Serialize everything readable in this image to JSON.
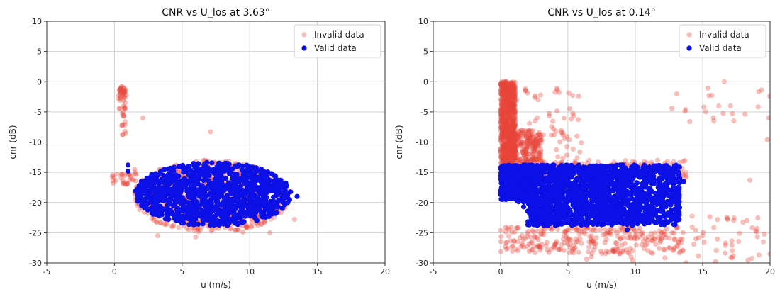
{
  "chart_data": [
    {
      "type": "scatter",
      "title": "CNR vs U_los at 3.63°",
      "xlabel": "u (m/s)",
      "ylabel": "cnr (dB)",
      "xlim": [
        -5,
        20
      ],
      "ylim": [
        -30,
        10
      ],
      "xticks": [
        -5,
        0,
        5,
        10,
        15,
        20
      ],
      "yticks": [
        10,
        5,
        0,
        -5,
        -10,
        -15,
        -20,
        -25,
        -30
      ],
      "grid": true,
      "legend_position": "top-right",
      "series": [
        {
          "name": "Invalid data",
          "color": "#e8463a",
          "alpha": 0.35,
          "clusters": [
            {
              "shape": "ellipse",
              "cx": 7.2,
              "cy": -19.0,
              "rx": 5.8,
              "ry": 6.0,
              "n": 650
            },
            {
              "shape": "ellipse",
              "cx": 0.6,
              "cy": -3.0,
              "rx": 0.3,
              "ry": 2.8,
              "n": 45
            },
            {
              "shape": "ellipse",
              "cx": 0.7,
              "cy": -7.5,
              "rx": 0.25,
              "ry": 1.8,
              "n": 10
            },
            {
              "shape": "ellipse",
              "cx": 0.8,
              "cy": -15.8,
              "rx": 1.0,
              "ry": 1.3,
              "n": 30
            }
          ],
          "points": [
            [
              -0.1,
              -16.8
            ],
            [
              2.1,
              -6.0
            ],
            [
              7.1,
              -8.3
            ],
            [
              0.2,
              -15.3
            ],
            [
              1.5,
              -14.5
            ],
            [
              11.5,
              -25.0
            ],
            [
              3.2,
              -25.5
            ],
            [
              6.0,
              -25.7
            ],
            [
              9.5,
              -24.9
            ],
            [
              13.3,
              -22.8
            ]
          ]
        },
        {
          "name": "Valid data",
          "color": "#0a10e6",
          "alpha": 1.0,
          "clusters": [
            {
              "shape": "ellipse",
              "cx": 7.3,
              "cy": -18.6,
              "rx": 5.8,
              "ry": 5.3,
              "n": 1100
            }
          ],
          "points": [
            [
              1.0,
              -13.8
            ],
            [
              1.0,
              -14.8
            ],
            [
              1.9,
              -19.0
            ],
            [
              13.5,
              -19.0
            ]
          ]
        }
      ]
    },
    {
      "type": "scatter",
      "title": "CNR vs U_los at 0.14°",
      "xlabel": "u (m/s)",
      "ylabel": "cnr (dB)",
      "xlim": [
        -5,
        20
      ],
      "ylim": [
        -30,
        10
      ],
      "xticks": [
        -5,
        0,
        5,
        10,
        15,
        20
      ],
      "yticks": [
        10,
        5,
        0,
        -5,
        -10,
        -15,
        -20,
        -25,
        -30
      ],
      "grid": true,
      "legend_position": "top-right",
      "series": [
        {
          "name": "Invalid data",
          "color": "#e8463a",
          "alpha": 0.35,
          "clusters": [
            {
              "shape": "rect",
              "x0": 0.0,
              "x1": 1.1,
              "y0": -13.5,
              "y1": 0.0,
              "n": 900
            },
            {
              "shape": "rect",
              "x0": 0.8,
              "x1": 3.0,
              "y0": -13.5,
              "y1": -8.0,
              "n": 200
            },
            {
              "shape": "rect",
              "x0": 0.0,
              "x1": 13.5,
              "y0": -28.5,
              "y1": -24.0,
              "n": 260
            },
            {
              "shape": "rect",
              "x0": 0.0,
              "x1": 13.8,
              "y0": -16.0,
              "y1": -13.0,
              "n": 200
            },
            {
              "shape": "rect",
              "x0": 1.0,
              "x1": 6.0,
              "y0": -13.0,
              "y1": -1.0,
              "n": 70
            },
            {
              "shape": "rect",
              "x0": 5.0,
              "x1": 20.0,
              "y0": -30.0,
              "y1": -24.0,
              "n": 60
            },
            {
              "shape": "rect",
              "x0": 12.0,
              "x1": 20.0,
              "y0": -8.0,
              "y1": 0.0,
              "n": 22
            },
            {
              "shape": "rect",
              "x0": 13.0,
              "x1": 20.0,
              "y0": -30.0,
              "y1": -22.0,
              "n": 25
            }
          ],
          "points": [
            [
              16.6,
              0.0
            ],
            [
              18.5,
              -16.3
            ],
            [
              19.8,
              -9.6
            ],
            [
              19.9,
              -6.0
            ],
            [
              20.0,
              -28.5
            ],
            [
              15.0,
              -25.5
            ],
            [
              14.5,
              -26.0
            ],
            [
              19.5,
              -26.5
            ]
          ]
        },
        {
          "name": "Valid data",
          "color": "#0a10e6",
          "alpha": 1.0,
          "clusters": [
            {
              "shape": "rect",
              "x0": 0.0,
              "x1": 2.5,
              "y0": -19.5,
              "y1": -13.8,
              "n": 500
            },
            {
              "shape": "rect",
              "x0": 2.0,
              "x1": 13.3,
              "y0": -23.8,
              "y1": -13.8,
              "n": 1400
            },
            {
              "shape": "ellipse",
              "cx": 7.0,
              "cy": -18.8,
              "rx": 6.0,
              "ry": 4.9,
              "n": 400
            }
          ],
          "points": [
            [
              9.4,
              -24.5
            ],
            [
              13.6,
              -16.5
            ],
            [
              13.2,
              -15.2
            ]
          ]
        }
      ]
    }
  ]
}
